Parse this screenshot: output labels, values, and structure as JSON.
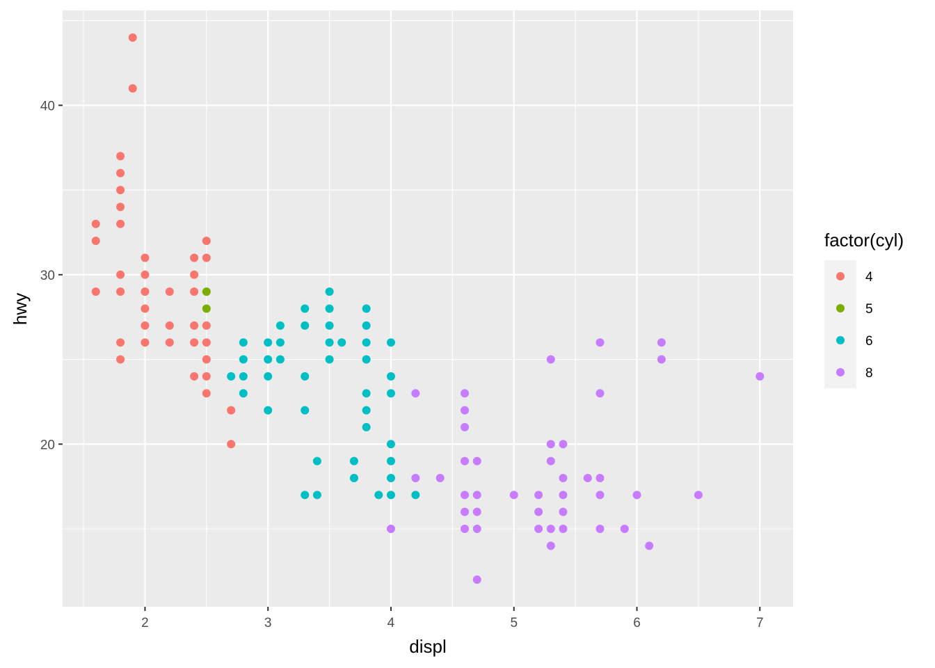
{
  "chart_data": {
    "type": "scatter",
    "title": "",
    "xlabel": "displ",
    "ylabel": "hwy",
    "xlim": [
      1.33,
      7.27
    ],
    "ylim": [
      10.4,
      45.6
    ],
    "x_ticks": [
      "2",
      "3",
      "4",
      "5",
      "6",
      "7"
    ],
    "y_ticks": [
      "20",
      "30",
      "40"
    ],
    "x_tick_values": [
      2,
      3,
      4,
      5,
      6,
      7
    ],
    "y_tick_values": [
      20,
      30,
      40
    ],
    "grid": true,
    "legend": {
      "title": "factor(cyl)",
      "placement": "right"
    },
    "series": [
      {
        "name": "4",
        "color": "#F8766D",
        "points": [
          [
            1.9,
            44
          ],
          [
            1.9,
            41
          ],
          [
            1.8,
            37
          ],
          [
            1.8,
            36
          ],
          [
            1.8,
            35
          ],
          [
            1.8,
            34
          ],
          [
            1.8,
            33
          ],
          [
            1.6,
            33
          ],
          [
            1.6,
            32
          ],
          [
            1.6,
            29
          ],
          [
            1.8,
            30
          ],
          [
            1.8,
            29
          ],
          [
            1.8,
            26
          ],
          [
            1.8,
            25
          ],
          [
            2.0,
            31
          ],
          [
            2.0,
            30
          ],
          [
            2.0,
            29
          ],
          [
            2.0,
            28
          ],
          [
            2.0,
            27
          ],
          [
            2.0,
            26
          ],
          [
            2.2,
            29
          ],
          [
            2.2,
            27
          ],
          [
            2.2,
            26
          ],
          [
            2.4,
            31
          ],
          [
            2.4,
            30
          ],
          [
            2.4,
            29
          ],
          [
            2.4,
            27
          ],
          [
            2.4,
            26
          ],
          [
            2.4,
            24
          ],
          [
            2.5,
            32
          ],
          [
            2.5,
            31
          ],
          [
            2.5,
            27
          ],
          [
            2.5,
            26
          ],
          [
            2.5,
            25
          ],
          [
            2.5,
            24
          ],
          [
            2.5,
            23
          ],
          [
            2.7,
            22
          ],
          [
            2.7,
            20
          ]
        ]
      },
      {
        "name": "5",
        "color": "#7CAE00",
        "points": [
          [
            2.5,
            29
          ],
          [
            2.5,
            28
          ]
        ]
      },
      {
        "name": "6",
        "color": "#00BFC4",
        "points": [
          [
            2.7,
            24
          ],
          [
            2.8,
            26
          ],
          [
            2.8,
            25
          ],
          [
            2.8,
            24
          ],
          [
            2.8,
            23
          ],
          [
            3.0,
            26
          ],
          [
            3.0,
            25
          ],
          [
            3.0,
            24
          ],
          [
            3.0,
            22
          ],
          [
            3.1,
            27
          ],
          [
            3.1,
            26
          ],
          [
            3.1,
            25
          ],
          [
            3.3,
            28
          ],
          [
            3.3,
            27
          ],
          [
            3.3,
            24
          ],
          [
            3.3,
            22
          ],
          [
            3.3,
            17
          ],
          [
            3.4,
            19
          ],
          [
            3.4,
            17
          ],
          [
            3.5,
            29
          ],
          [
            3.5,
            28
          ],
          [
            3.5,
            27
          ],
          [
            3.5,
            26
          ],
          [
            3.5,
            25
          ],
          [
            3.6,
            26
          ],
          [
            3.7,
            19
          ],
          [
            3.7,
            18
          ],
          [
            3.8,
            28
          ],
          [
            3.8,
            27
          ],
          [
            3.8,
            26
          ],
          [
            3.8,
            25
          ],
          [
            3.8,
            23
          ],
          [
            3.8,
            22
          ],
          [
            3.8,
            21
          ],
          [
            3.9,
            17
          ],
          [
            4.0,
            26
          ],
          [
            4.0,
            24
          ],
          [
            4.0,
            23
          ],
          [
            4.0,
            20
          ],
          [
            4.0,
            19
          ],
          [
            4.0,
            18
          ],
          [
            4.0,
            17
          ],
          [
            4.2,
            17
          ]
        ]
      },
      {
        "name": "8",
        "color": "#C77CFF",
        "points": [
          [
            4.0,
            15
          ],
          [
            4.2,
            23
          ],
          [
            4.2,
            18
          ],
          [
            4.4,
            18
          ],
          [
            4.6,
            23
          ],
          [
            4.6,
            22
          ],
          [
            4.6,
            21
          ],
          [
            4.6,
            19
          ],
          [
            4.6,
            17
          ],
          [
            4.6,
            16
          ],
          [
            4.6,
            15
          ],
          [
            4.7,
            19
          ],
          [
            4.7,
            17
          ],
          [
            4.7,
            16
          ],
          [
            4.7,
            15
          ],
          [
            4.7,
            12
          ],
          [
            5.0,
            17
          ],
          [
            5.2,
            17
          ],
          [
            5.2,
            16
          ],
          [
            5.2,
            15
          ],
          [
            5.3,
            25
          ],
          [
            5.3,
            20
          ],
          [
            5.3,
            19
          ],
          [
            5.3,
            15
          ],
          [
            5.3,
            14
          ],
          [
            5.4,
            20
          ],
          [
            5.4,
            18
          ],
          [
            5.4,
            17
          ],
          [
            5.4,
            16
          ],
          [
            5.4,
            15
          ],
          [
            5.6,
            18
          ],
          [
            5.7,
            26
          ],
          [
            5.7,
            23
          ],
          [
            5.7,
            18
          ],
          [
            5.7,
            17
          ],
          [
            5.7,
            15
          ],
          [
            5.9,
            15
          ],
          [
            6.0,
            17
          ],
          [
            6.1,
            14
          ],
          [
            6.2,
            26
          ],
          [
            6.2,
            25
          ],
          [
            6.5,
            17
          ],
          [
            7.0,
            24
          ]
        ]
      }
    ]
  }
}
